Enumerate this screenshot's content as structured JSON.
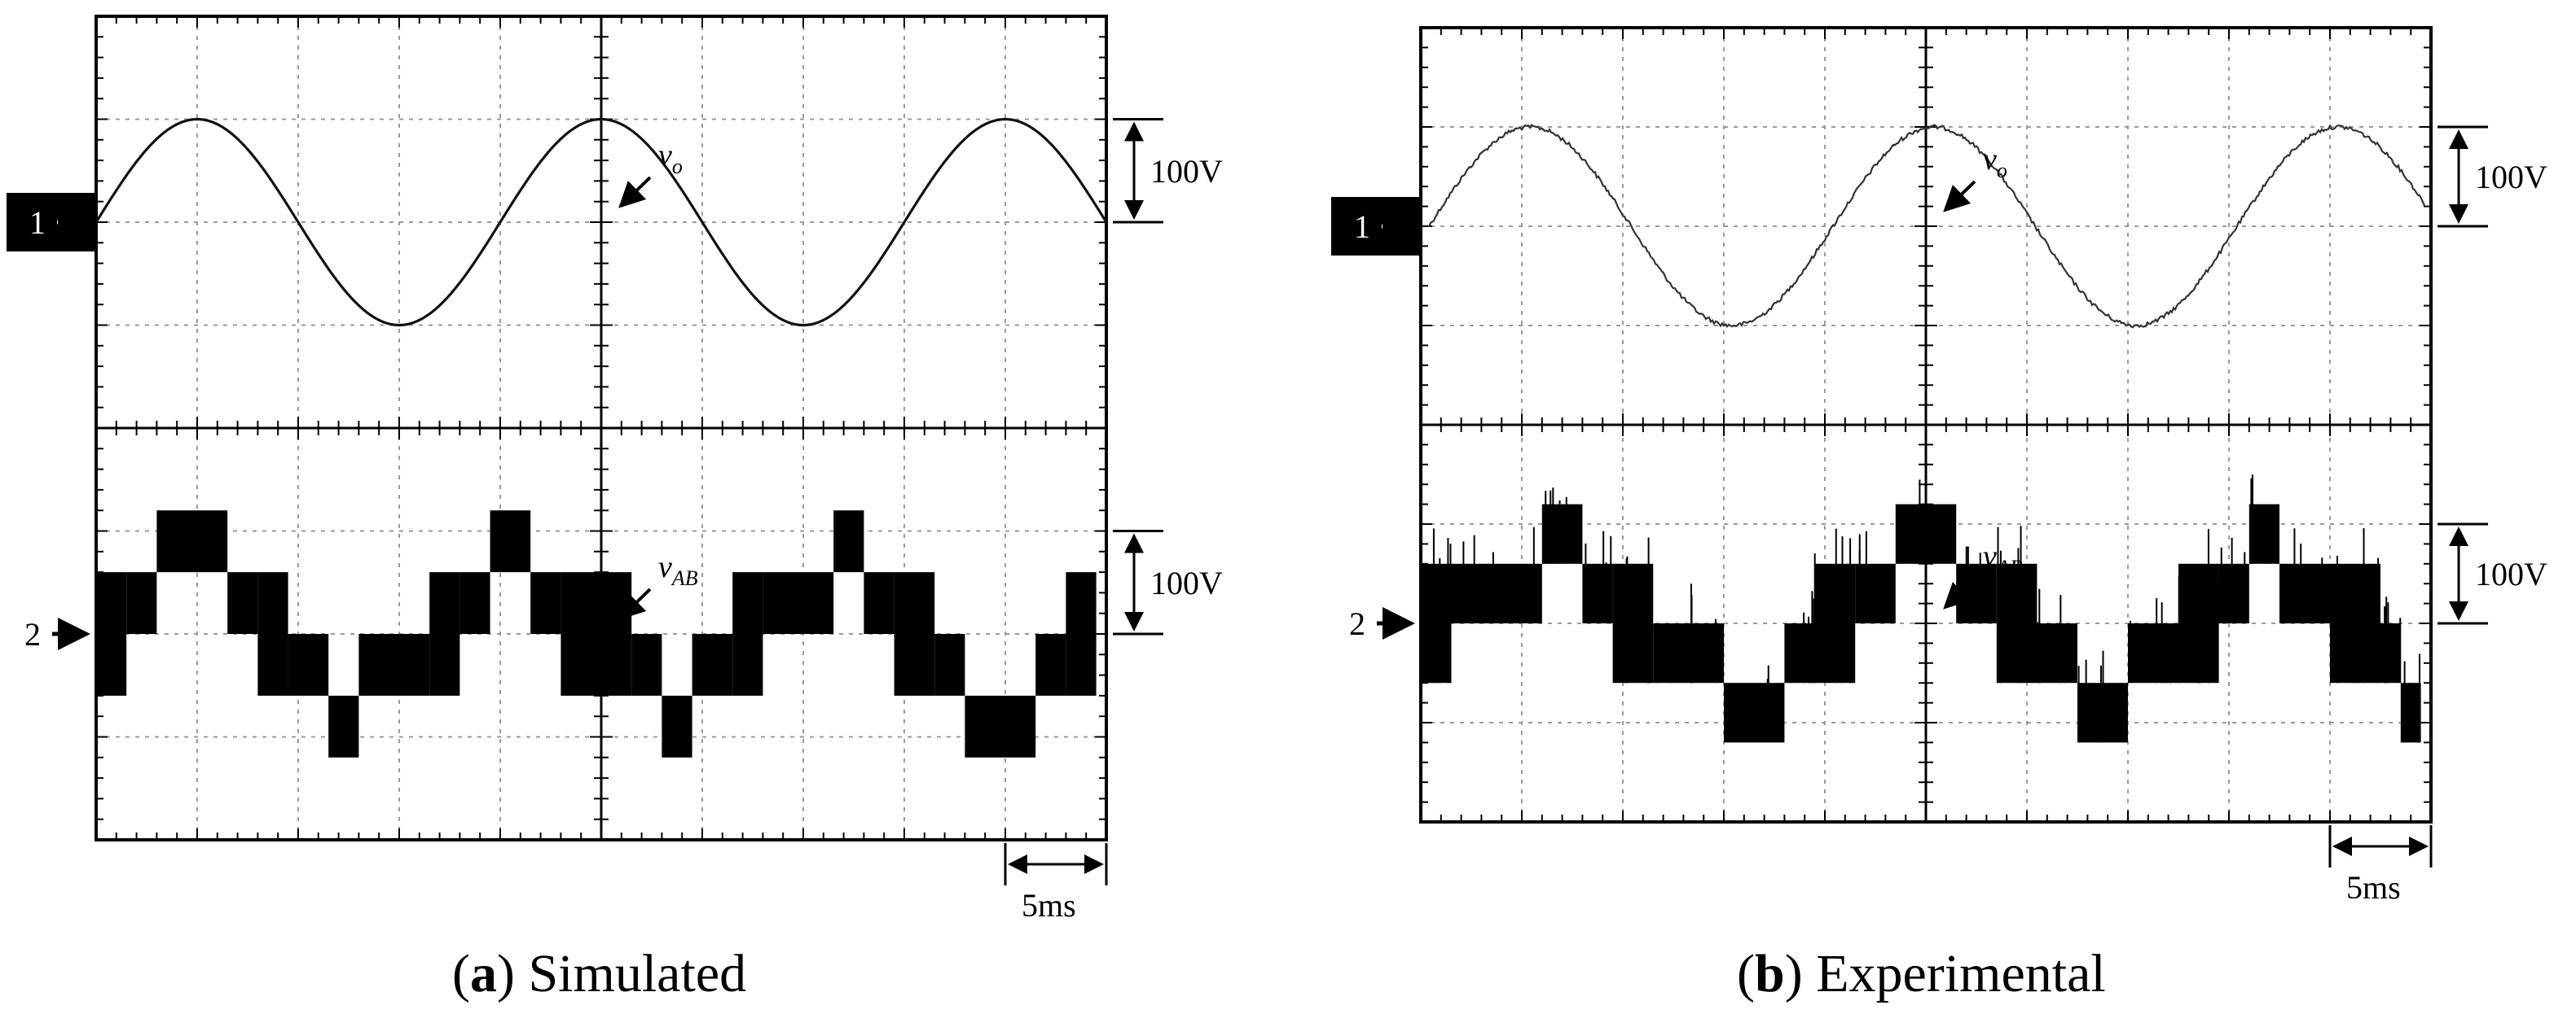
{
  "panels": [
    {
      "letter": "a",
      "caption": "Simulated",
      "marker1": "1",
      "marker2": "2",
      "scale_top": "100V",
      "scale_bottom": "100V",
      "time_scale": "5ms",
      "label_top_base": "v",
      "label_top_sub": "o",
      "label_bottom_base": "v",
      "label_bottom_sub": "AB"
    },
    {
      "letter": "b",
      "caption": "Experimental",
      "marker1": "1",
      "marker2": "2",
      "scale_top": "100V",
      "scale_bottom": "100V",
      "time_scale": "5ms",
      "label_top_base": "v",
      "label_top_sub": "o",
      "label_bottom_base": "v",
      "label_bottom_sub": "AB"
    }
  ],
  "chart_data": [
    {
      "type": "line",
      "grid": true,
      "x_unit": "ms",
      "x_range": [
        0,
        50
      ],
      "series": [
        {
          "name": "v_o",
          "channel": "1",
          "volts_per_div": 100,
          "waveform": "sine",
          "amplitude_V": 100,
          "frequency_Hz": 50,
          "x": [
            0,
            2.5,
            5,
            7.5,
            10,
            12.5,
            15,
            17.5,
            20,
            22.5,
            25,
            27.5,
            30,
            32.5,
            35,
            37.5,
            40,
            42.5,
            45,
            47.5,
            50
          ],
          "y": [
            0,
            71,
            100,
            71,
            0,
            -71,
            -100,
            -71,
            0,
            71,
            100,
            71,
            0,
            -71,
            -100,
            -71,
            0,
            71,
            100,
            71,
            0
          ]
        },
        {
          "name": "v_AB",
          "channel": "2",
          "volts_per_div": 100,
          "waveform": "multilevel staircase",
          "x": [
            0,
            1.5,
            3,
            6.5,
            8,
            9.5,
            11.5,
            13,
            16.5,
            18,
            19.5,
            21.5,
            23,
            26.5,
            28,
            29.5,
            31.5,
            33,
            36.5,
            38,
            39.5,
            41.5,
            43,
            46.5,
            48,
            49.5
          ],
          "y": [
            0,
            60,
            115,
            60,
            0,
            -60,
            -115,
            -60,
            0,
            60,
            115,
            60,
            0,
            -60,
            -115,
            -60,
            0,
            60,
            115,
            60,
            0,
            -60,
            -115,
            -60,
            0,
            0
          ]
        }
      ]
    },
    {
      "type": "line",
      "grid": true,
      "x_unit": "ms",
      "x_range": [
        0,
        50
      ],
      "series": [
        {
          "name": "v_o",
          "channel": "1",
          "volts_per_div": 100,
          "waveform": "sine (measured, slight noise)",
          "amplitude_V": 100,
          "frequency_Hz": 50,
          "x": [
            0,
            3.5,
            8.5,
            13.5,
            18.5,
            25.5,
            33.5,
            38.5,
            45.5,
            49
          ],
          "y": [
            0,
            100,
            0,
            -100,
            0,
            100,
            -100,
            0,
            100,
            0
          ]
        },
        {
          "name": "v_AB",
          "channel": "2",
          "volts_per_div": 100,
          "waveform": "multilevel staircase (measured, with switching spikes)",
          "x": [
            0,
            1.5,
            6,
            8,
            9.5,
            11.5,
            15,
            18,
            19.5,
            21.5,
            23.5,
            26.5,
            28.5,
            30.5,
            32.5,
            35,
            37.5,
            39.5,
            41,
            42.5,
            45,
            47.5,
            48.5,
            49.5
          ],
          "y": [
            0,
            60,
            115,
            60,
            0,
            -60,
            -115,
            -60,
            0,
            60,
            115,
            60,
            0,
            -60,
            -115,
            -60,
            0,
            60,
            115,
            60,
            0,
            -60,
            -115,
            -60
          ]
        }
      ]
    }
  ]
}
